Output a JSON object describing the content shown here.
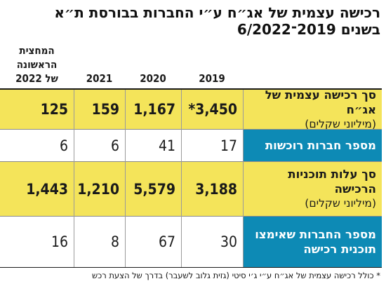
{
  "title_line1": "רכישה עצמית של אג״ח ע״י החברות בבורסת ת״א",
  "title_line2": "בשנים 2019־6/2022",
  "columns": [
    "2019",
    "2020",
    "2021",
    "המחצית\nהראשונה\nשל 2022"
  ],
  "rows": [
    {
      "label": "סך רכישה עצמית של אג״ח",
      "sublabel": "(מיליוני שקלים)",
      "highlight": "yellow",
      "values": [
        "*3,450",
        "1,167",
        "159",
        "125"
      ]
    },
    {
      "label": "מספר חברות רוכשות",
      "sublabel": "",
      "highlight": "teal",
      "values": [
        "17",
        "41",
        "6",
        "6"
      ]
    },
    {
      "label": "סך עלות תוכניות הרכישה",
      "sublabel": "(מיליוני שקלים)",
      "highlight": "yellow",
      "values": [
        "3,188",
        "5,579",
        "1,210",
        "1,443"
      ]
    },
    {
      "label": "מספר החברות שאימצו תוכנית רכישה",
      "sublabel": "",
      "highlight": "teal",
      "values": [
        "30",
        "67",
        "8",
        "16"
      ]
    }
  ],
  "footnote": "* כולל רכישה עצמית של אג״ח ע״י ג׳י סיטי (גזית גלוב לשעבר) בדרך של הצעת רכש",
  "colors": {
    "yellow": "#f4e45a",
    "teal": "#0d8ab5"
  }
}
